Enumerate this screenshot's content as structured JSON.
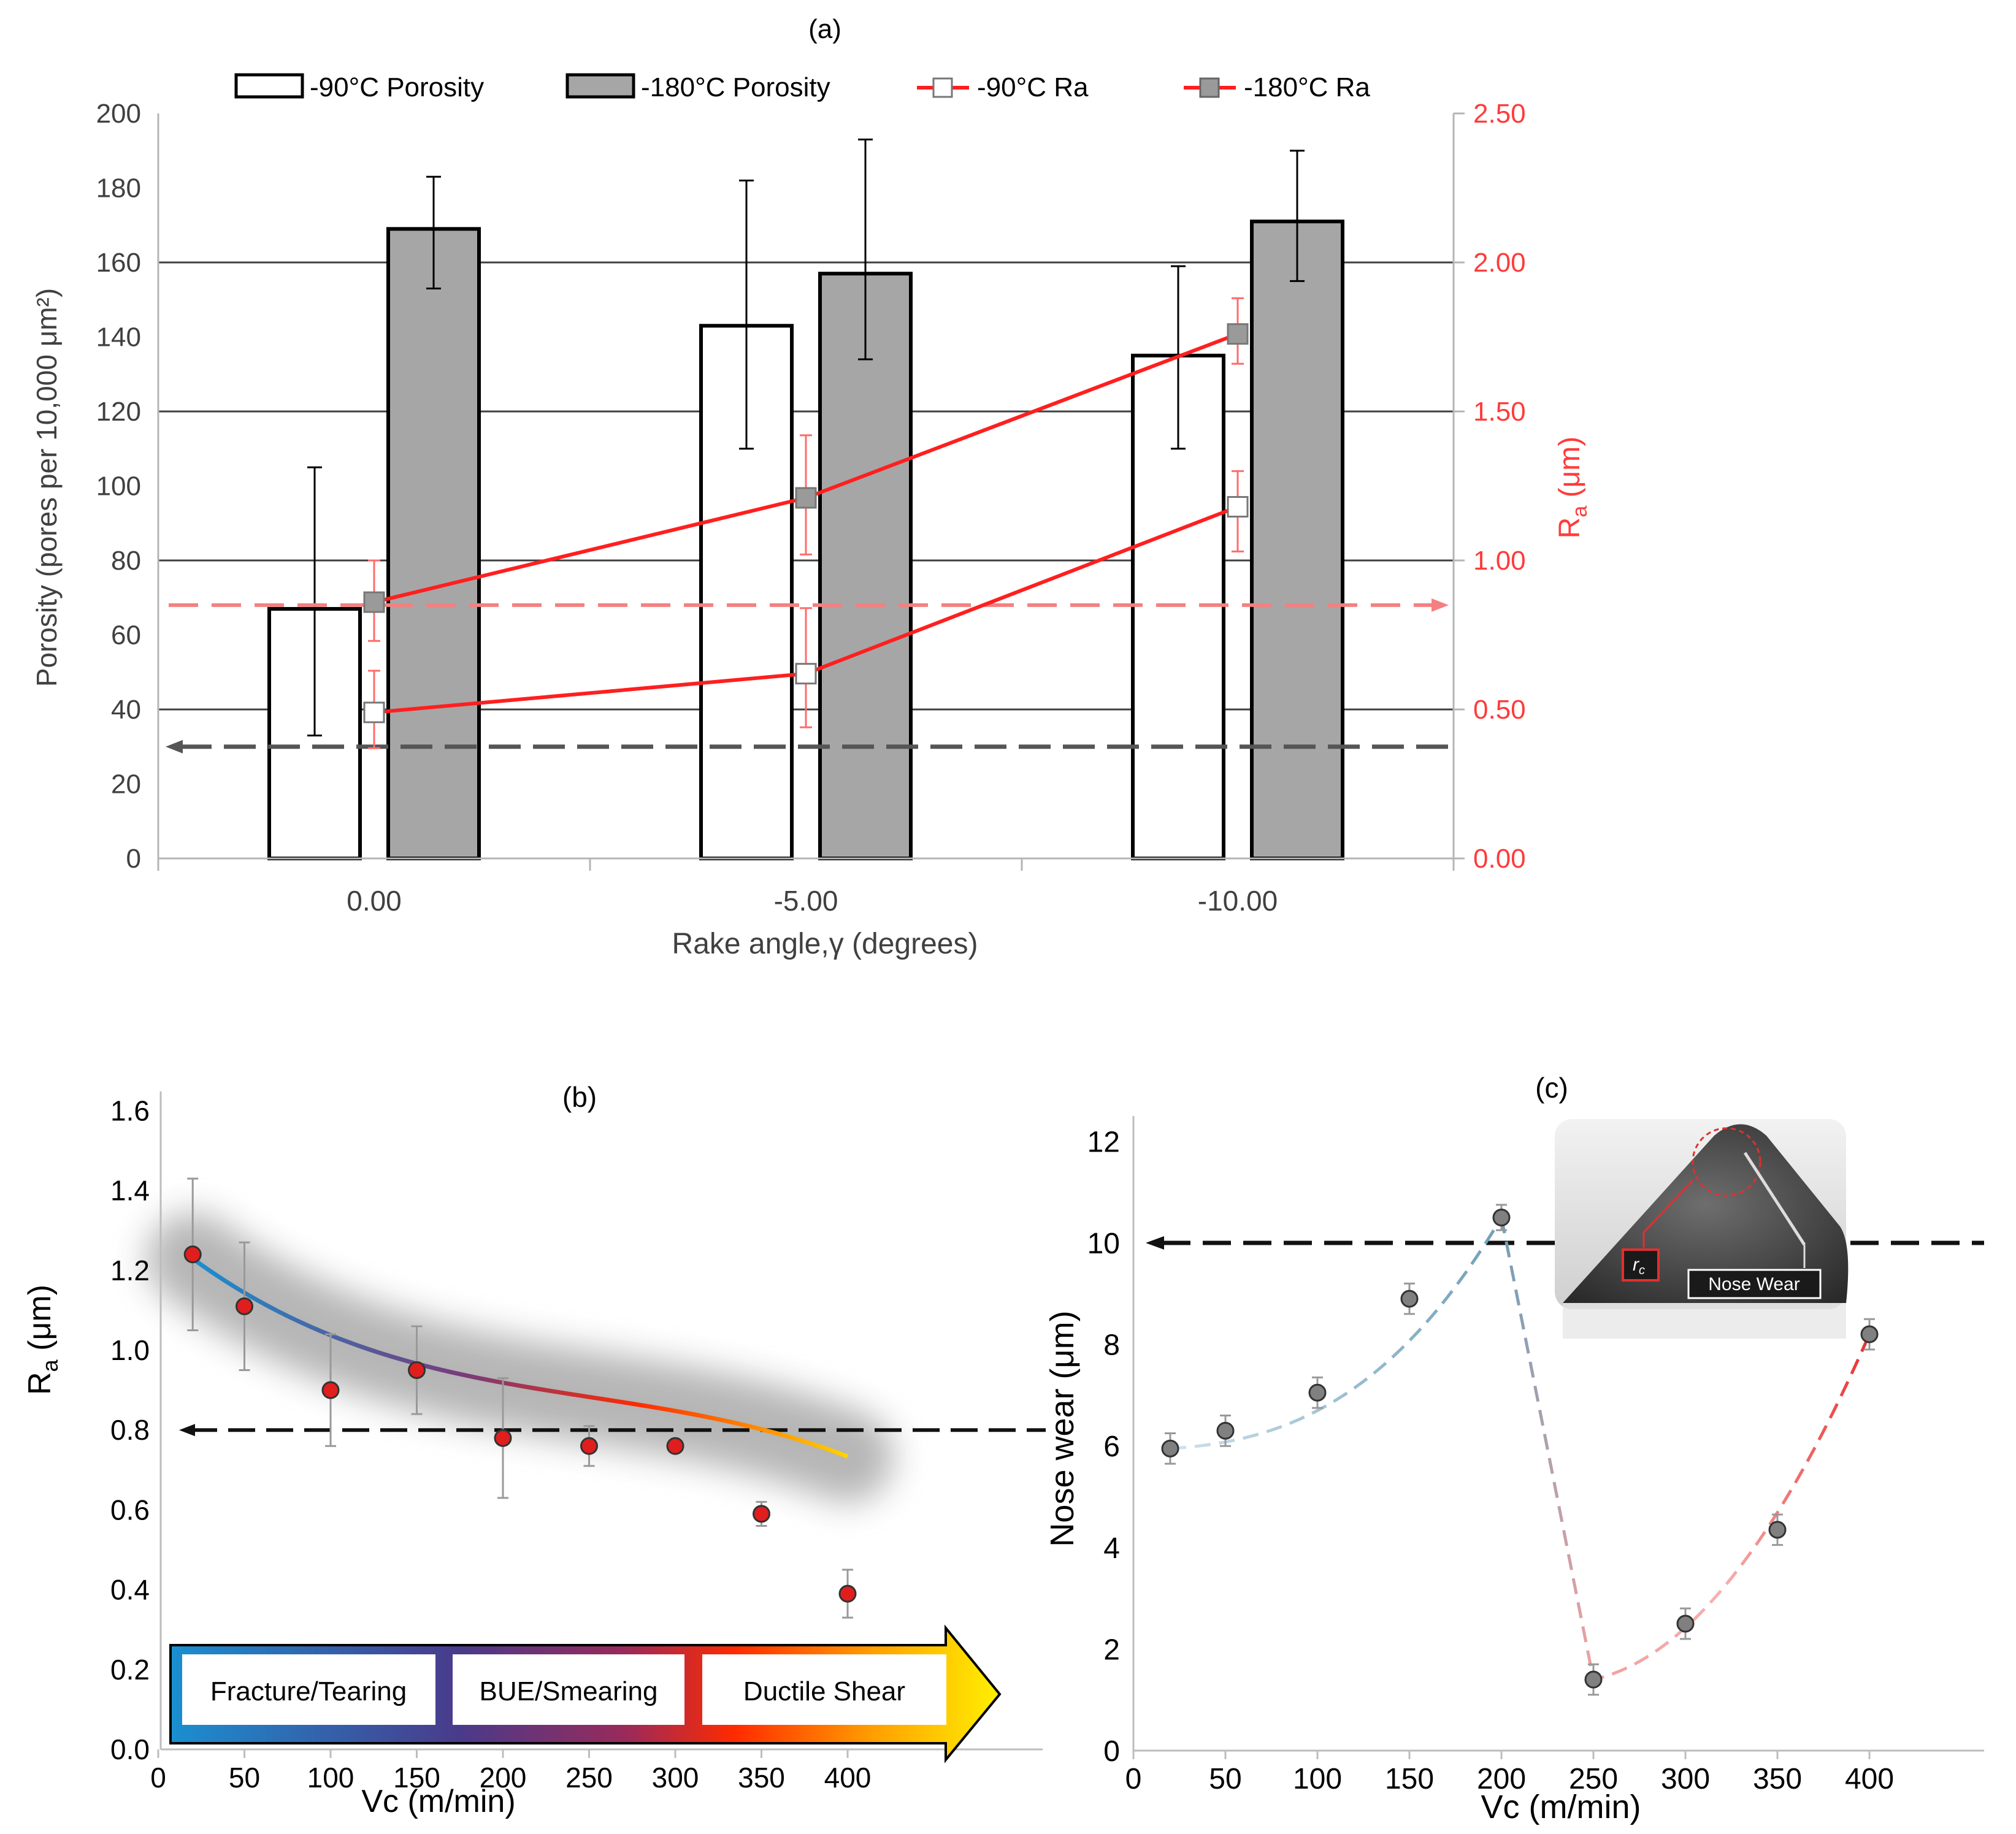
{
  "panel_labels": {
    "a": "(a)",
    "b": "(b)",
    "c": "(c)"
  },
  "legend_a": {
    "porosity_90": "-90°C Porosity",
    "porosity_180": "-180°C Porosity",
    "ra_90": "-90°C Ra",
    "ra_180": "-180°C Ra"
  },
  "axes_a": {
    "xlabel": "Rake angle,γ (degrees)",
    "ylabel_left": "Porosity (pores per 10,000 μm²)",
    "ylabel_right_main": "R",
    "ylabel_right_sub": "a",
    "ylabel_right_unit": " (μm)",
    "left_ticks": [
      "0",
      "20",
      "40",
      "60",
      "80",
      "100",
      "120",
      "140",
      "160",
      "180",
      "200"
    ],
    "right_ticks": [
      "0.00",
      "0.50",
      "1.00",
      "1.50",
      "2.00",
      "2.50"
    ]
  },
  "axes_b": {
    "xlabel": "Vc (m/min)",
    "ylabel_main": "R",
    "ylabel_sub": "a",
    "ylabel_unit": " (μm)",
    "x_ticks": [
      "0",
      "50",
      "100",
      "150",
      "200",
      "250",
      "300",
      "350",
      "400"
    ],
    "y_ticks": [
      "0.0",
      "0.2",
      "0.4",
      "0.6",
      "0.8",
      "1.0",
      "1.2",
      "1.4",
      "1.6"
    ]
  },
  "regimes_b": {
    "fracture": "Fracture/Tearing",
    "bue": "BUE/Smearing",
    "ductile": "Ductile Shear"
  },
  "axes_c": {
    "xlabel": "Vc (m/min)",
    "ylabel": "Nose wear (μm)",
    "x_ticks": [
      "0",
      "50",
      "100",
      "150",
      "200",
      "250",
      "300",
      "350",
      "400"
    ],
    "y_ticks": [
      "0",
      "2",
      "4",
      "6",
      "8",
      "10",
      "12"
    ]
  },
  "inset_c": {
    "rc_main": "r",
    "rc_sub": "c",
    "nose_wear": "Nose Wear"
  },
  "colors": {
    "ra_line": "#ff1f1f",
    "porosity_180_fill": "#a6a6a6",
    "ref_gray": "#555555",
    "ref_pink": "#f48080",
    "right_axis": "#ff3b3b",
    "marker_red": "#e01e1e",
    "marker_gray": "#808080"
  },
  "chart_data": [
    {
      "type": "bar",
      "panel": "a",
      "categories": [
        "0.00",
        "-5.00",
        "-10.00"
      ],
      "xlabel": "Rake angle,γ (degrees)",
      "ylabel": "Porosity (pores per 10,000 μm²)",
      "ylim": [
        0,
        200
      ],
      "y2label": "Ra (μm)",
      "y2lim": [
        0,
        2.5
      ],
      "grid": "horizontal",
      "legend": "top",
      "series": [
        {
          "name": "-90°C Porosity",
          "axis": "left",
          "type": "bar",
          "values": [
            67,
            143,
            135
          ],
          "err_low": [
            33,
            110,
            110
          ],
          "err_high": [
            105,
            182,
            159
          ]
        },
        {
          "name": "-180°C Porosity",
          "axis": "left",
          "type": "bar",
          "values": [
            169,
            157,
            171
          ],
          "err_low": [
            153,
            134,
            155
          ],
          "err_high": [
            183,
            193,
            190
          ]
        },
        {
          "name": "-90°C Ra",
          "axis": "right",
          "type": "line",
          "values": [
            0.49,
            0.62,
            1.18
          ],
          "err_low": [
            0.37,
            0.44,
            1.03
          ],
          "err_high": [
            0.63,
            0.84,
            1.3
          ]
        },
        {
          "name": "-180°C Ra",
          "axis": "right",
          "type": "line",
          "values": [
            0.86,
            1.21,
            1.76
          ],
          "err_low": [
            0.73,
            1.02,
            1.66
          ],
          "err_high": [
            1.0,
            1.42,
            1.88
          ]
        }
      ],
      "reference_lines": [
        {
          "axis": "left",
          "value": 30,
          "color": "gray",
          "arrow": "left"
        },
        {
          "axis": "right",
          "value": 0.85,
          "color": "pink",
          "arrow": "right"
        }
      ]
    },
    {
      "type": "scatter",
      "panel": "b",
      "xlabel": "Vc (m/min)",
      "ylabel": "Ra (μm)",
      "xlim": [
        0,
        450
      ],
      "ylim": [
        0,
        1.65
      ],
      "x": [
        20,
        50,
        100,
        150,
        200,
        250,
        300,
        350,
        400
      ],
      "y": [
        1.24,
        1.11,
        0.9,
        0.95,
        0.78,
        0.76,
        0.76,
        0.59,
        0.39
      ],
      "err": [
        0.19,
        0.16,
        0.14,
        0.11,
        0.15,
        0.05,
        0.0,
        0.03,
        0.06
      ],
      "fit": "cubic",
      "reference_lines": [
        {
          "value": 0.8,
          "arrow": "left"
        }
      ],
      "regimes": [
        "Fracture/Tearing",
        "BUE/Smearing",
        "Ductile Shear"
      ]
    },
    {
      "type": "scatter",
      "panel": "c",
      "xlabel": "Vc (m/min)",
      "ylabel": "Nose wear (μm)",
      "xlim": [
        0,
        460
      ],
      "ylim": [
        0,
        12
      ],
      "x": [
        20,
        50,
        100,
        150,
        200,
        250,
        300,
        350,
        400
      ],
      "y": [
        5.95,
        6.3,
        7.05,
        8.9,
        10.5,
        1.4,
        2.5,
        4.35,
        8.2
      ],
      "err": [
        0.3,
        0.3,
        0.3,
        0.3,
        0.25,
        0.3,
        0.3,
        0.3,
        0.3
      ],
      "reference_lines": [
        {
          "value": 10,
          "arrow": "left"
        }
      ],
      "trend": "increasing to 200, drop at 250, increasing to 400"
    }
  ]
}
